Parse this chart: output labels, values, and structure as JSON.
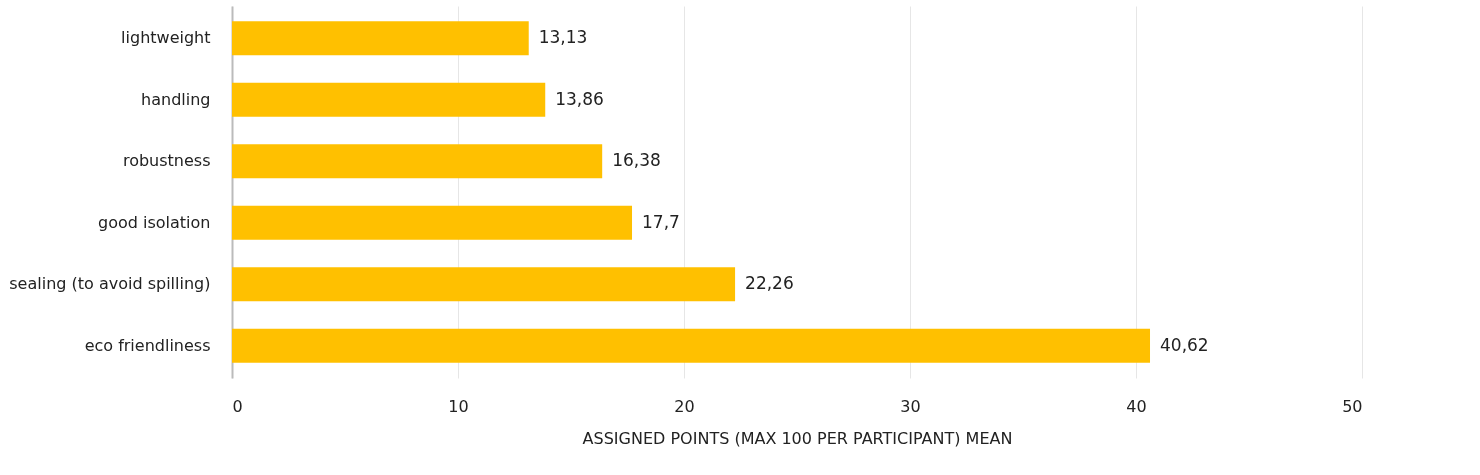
{
  "chart_data": {
    "type": "bar",
    "orientation": "horizontal",
    "xlabel": "ASSIGNED POINTS (MAX 100 PER PARTICIPANT) MEAN",
    "categories": [
      "lightweight",
      "handling",
      "robustness",
      "good isolation",
      "sealing (to avoid spilling)",
      "eco friendliness"
    ],
    "values": [
      13.13,
      13.86,
      16.38,
      17.7,
      22.26,
      40.62
    ],
    "value_labels": [
      "13,13",
      "13,86",
      "16,38",
      "17,7",
      "22,26",
      "40,62"
    ],
    "color": "#ffc000",
    "xlim": [
      0,
      50
    ],
    "xticks": [
      0,
      10,
      20,
      30,
      40,
      50
    ],
    "grid": "x"
  }
}
